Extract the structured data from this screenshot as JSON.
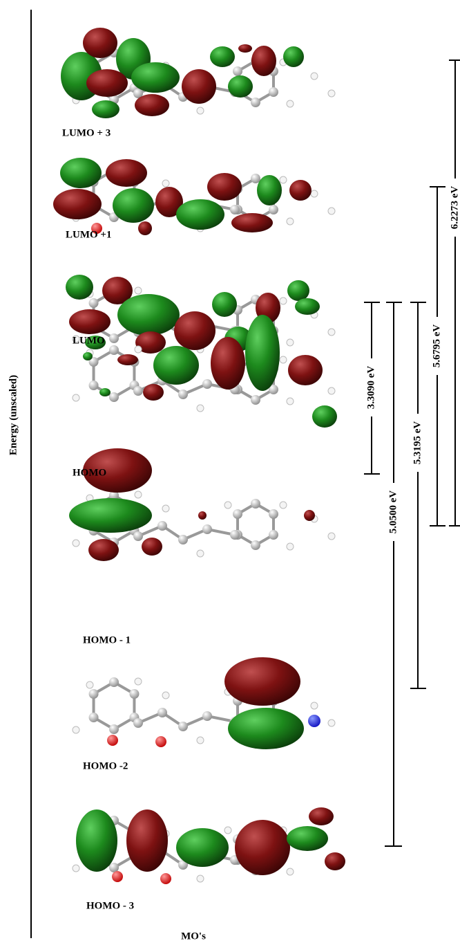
{
  "axis_label": "Energy (unscaled)",
  "orbitals": [
    "LUMO + 3",
    "LUMO +1",
    "LUMO",
    "HOMO",
    "HOMO - 1",
    "HOMO -2",
    "HOMO - 3"
  ],
  "gaps": [
    "3.3090 eV",
    "5.0500 eV",
    "5.3195 eV",
    "5.6795 eV",
    "6.2273 eV"
  ],
  "footer": "MO's"
}
